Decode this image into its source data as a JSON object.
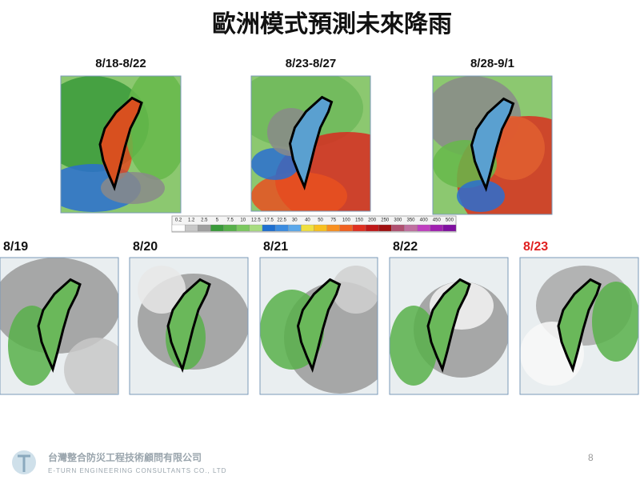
{
  "header": {
    "title": "歐洲模式預測未來降雨"
  },
  "periods": [
    "8/18-8/22",
    "8/23-8/27",
    "8/28-9/1"
  ],
  "legend": [
    "0.2",
    "1.2",
    "2.5",
    "5",
    "7.5",
    "10",
    "12.5",
    "17.5",
    "22.5",
    "30",
    "40",
    "50",
    "75",
    "100",
    "150",
    "200",
    "250",
    "300",
    "350",
    "400",
    "450",
    "500"
  ],
  "days": [
    "8/19",
    "8/20",
    "8/21",
    "8/22",
    "8/23"
  ],
  "footer": {
    "company": "台灣整合防災工程技術顧問有限公司",
    "company_en": "E-TURN ENGINEERING CONSULTANTS CO., LTD",
    "page": "8"
  }
}
